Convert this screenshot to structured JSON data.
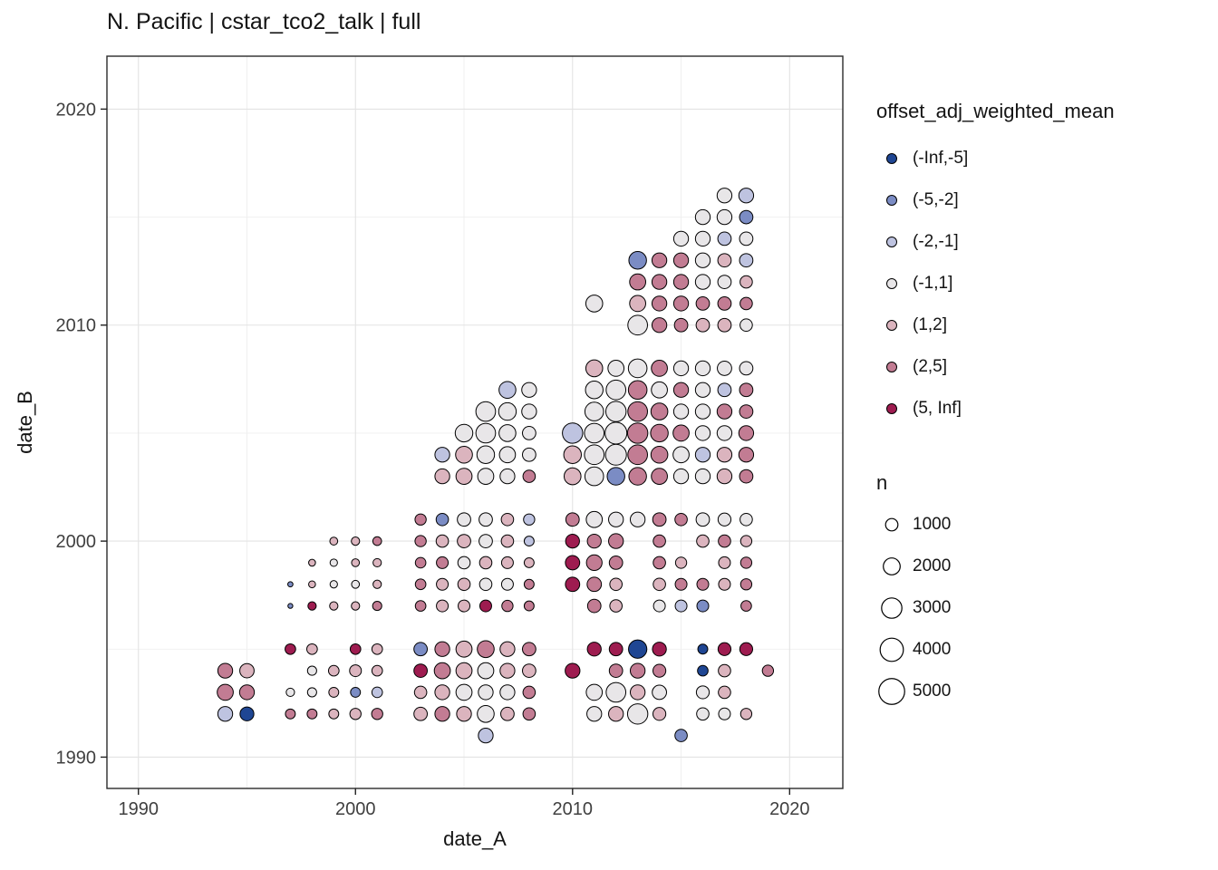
{
  "chart_data": {
    "type": "scatter",
    "title": "N. Pacific | cstar_tco2_talk | full",
    "xlabel": "date_A",
    "ylabel": "date_B",
    "xlim": [
      1988.55,
      2022.45
    ],
    "ylim": [
      1988.55,
      2022.45
    ],
    "x_ticks": [
      1990,
      2000,
      2010,
      2020
    ],
    "y_ticks": [
      1990,
      2000,
      2010,
      2020
    ],
    "x_minor_ticks": [
      1995,
      2005,
      2015
    ],
    "y_minor_ticks": [
      1995,
      2005,
      2015
    ],
    "grid": "major+minor",
    "legend_position": "right",
    "panel_border_color": "#2a2a2a",
    "major_grid_color": "#e3e3e3",
    "minor_grid_color": "#efefef",
    "point_stroke_color": "#000000",
    "color_legend": {
      "title": "offset_adj_weighted_mean",
      "bins": [
        {
          "label": "(-Inf,-5]",
          "color": "#1F4693"
        },
        {
          "label": "(-5,-2]",
          "color": "#7B8CC4"
        },
        {
          "label": "(-2,-1]",
          "color": "#BEC3E0"
        },
        {
          "label": "(-1,1]",
          "color": "#E8E6E8"
        },
        {
          "label": "(1,2]",
          "color": "#DBB4BE"
        },
        {
          "label": "(2,5]",
          "color": "#C27C93"
        },
        {
          "label": "(5, Inf]",
          "color": "#9E1C50"
        }
      ]
    },
    "size_legend": {
      "title": "n",
      "values": [
        1000,
        2000,
        3000,
        4000,
        5000
      ]
    },
    "points_format": [
      "date_A",
      "date_B",
      "n",
      "color_bin_index"
    ],
    "points": [
      [
        1994,
        1994,
        1500,
        5
      ],
      [
        1995,
        1994,
        1400,
        4
      ],
      [
        1994,
        1993,
        1800,
        5
      ],
      [
        1995,
        1993,
        1500,
        5
      ],
      [
        1994,
        1992,
        1500,
        2
      ],
      [
        1995,
        1992,
        1300,
        0
      ],
      [
        1997,
        1995,
        700,
        6
      ],
      [
        1998,
        1995,
        700,
        4
      ],
      [
        2000,
        1995,
        700,
        6
      ],
      [
        2001,
        1995,
        700,
        4
      ],
      [
        1998,
        1994,
        500,
        3
      ],
      [
        1999,
        1994,
        700,
        4
      ],
      [
        2000,
        1994,
        900,
        4
      ],
      [
        2001,
        1994,
        700,
        4
      ],
      [
        1997,
        1993,
        400,
        3
      ],
      [
        1998,
        1993,
        500,
        3
      ],
      [
        1999,
        1993,
        600,
        4
      ],
      [
        2000,
        1993,
        600,
        1
      ],
      [
        2001,
        1993,
        700,
        2
      ],
      [
        1997,
        1992,
        600,
        5
      ],
      [
        1998,
        1992,
        600,
        5
      ],
      [
        1999,
        1992,
        600,
        4
      ],
      [
        2000,
        1992,
        800,
        4
      ],
      [
        2001,
        1992,
        800,
        5
      ],
      [
        2003,
        1995,
        1200,
        1
      ],
      [
        2004,
        1995,
        1500,
        5
      ],
      [
        2005,
        1995,
        1800,
        4
      ],
      [
        2006,
        1995,
        2000,
        5
      ],
      [
        2007,
        1995,
        1500,
        4
      ],
      [
        2008,
        1995,
        1200,
        5
      ],
      [
        2003,
        1994,
        1200,
        6
      ],
      [
        2004,
        1994,
        1800,
        5
      ],
      [
        2005,
        1994,
        1800,
        4
      ],
      [
        2006,
        1994,
        1800,
        3
      ],
      [
        2007,
        1994,
        1500,
        4
      ],
      [
        2008,
        1994,
        1200,
        4
      ],
      [
        2003,
        1993,
        1000,
        4
      ],
      [
        2004,
        1993,
        1500,
        4
      ],
      [
        2005,
        1993,
        1800,
        3
      ],
      [
        2006,
        1993,
        1500,
        3
      ],
      [
        2007,
        1993,
        1500,
        3
      ],
      [
        2008,
        1993,
        1000,
        5
      ],
      [
        2003,
        1992,
        1200,
        4
      ],
      [
        2004,
        1992,
        1500,
        5
      ],
      [
        2005,
        1992,
        1500,
        4
      ],
      [
        2006,
        1992,
        2000,
        3
      ],
      [
        2007,
        1992,
        1200,
        4
      ],
      [
        2008,
        1992,
        1000,
        5
      ],
      [
        2006,
        1991,
        1500,
        2
      ],
      [
        2011,
        1995,
        1300,
        6
      ],
      [
        2012,
        1995,
        1200,
        6
      ],
      [
        2013,
        1995,
        2400,
        0
      ],
      [
        2014,
        1995,
        1300,
        6
      ],
      [
        2016,
        1995,
        600,
        0
      ],
      [
        2017,
        1995,
        1100,
        6
      ],
      [
        2018,
        1995,
        1100,
        6
      ],
      [
        2010,
        1994,
        1500,
        6
      ],
      [
        2012,
        1994,
        1200,
        5
      ],
      [
        2013,
        1994,
        1500,
        5
      ],
      [
        2014,
        1994,
        1100,
        5
      ],
      [
        2016,
        1994,
        700,
        0
      ],
      [
        2017,
        1994,
        1000,
        4
      ],
      [
        2019,
        1994,
        800,
        5
      ],
      [
        2011,
        1993,
        1800,
        3
      ],
      [
        2012,
        1993,
        2800,
        3
      ],
      [
        2013,
        1993,
        1500,
        4
      ],
      [
        2014,
        1993,
        1400,
        3
      ],
      [
        2016,
        1993,
        1100,
        3
      ],
      [
        2017,
        1993,
        1000,
        4
      ],
      [
        2011,
        1992,
        1500,
        3
      ],
      [
        2012,
        1992,
        1500,
        4
      ],
      [
        2013,
        1992,
        3000,
        3
      ],
      [
        2014,
        1992,
        1100,
        4
      ],
      [
        2016,
        1992,
        1000,
        3
      ],
      [
        2017,
        1992,
        900,
        3
      ],
      [
        2018,
        1992,
        800,
        4
      ],
      [
        2015,
        1991,
        1000,
        1
      ],
      [
        1999,
        2000,
        350,
        4
      ],
      [
        2000,
        2000,
        400,
        4
      ],
      [
        2001,
        2000,
        450,
        5
      ],
      [
        1998,
        1999,
        250,
        4
      ],
      [
        1999,
        1999,
        300,
        3
      ],
      [
        2000,
        1999,
        350,
        4
      ],
      [
        2001,
        1999,
        400,
        4
      ],
      [
        1997,
        1998,
        120,
        1
      ],
      [
        1998,
        1998,
        250,
        4
      ],
      [
        1999,
        1998,
        300,
        3
      ],
      [
        2000,
        1998,
        350,
        3
      ],
      [
        2001,
        1998,
        400,
        4
      ],
      [
        1997,
        1997,
        100,
        1
      ],
      [
        1998,
        1997,
        400,
        6
      ],
      [
        1999,
        1997,
        400,
        4
      ],
      [
        2000,
        1997,
        400,
        4
      ],
      [
        2001,
        1997,
        500,
        5
      ],
      [
        2003,
        2001,
        800,
        5
      ],
      [
        2004,
        2001,
        1000,
        1
      ],
      [
        2005,
        2001,
        1200,
        3
      ],
      [
        2006,
        2001,
        1200,
        3
      ],
      [
        2007,
        2001,
        1000,
        4
      ],
      [
        2008,
        2001,
        800,
        2
      ],
      [
        2003,
        2000,
        800,
        5
      ],
      [
        2004,
        2000,
        1000,
        4
      ],
      [
        2005,
        2000,
        1200,
        4
      ],
      [
        2006,
        2000,
        1200,
        3
      ],
      [
        2007,
        2000,
        1000,
        4
      ],
      [
        2008,
        2000,
        600,
        2
      ],
      [
        2003,
        1999,
        700,
        5
      ],
      [
        2004,
        1999,
        900,
        5
      ],
      [
        2005,
        1999,
        1000,
        3
      ],
      [
        2006,
        1999,
        1000,
        4
      ],
      [
        2007,
        1999,
        900,
        4
      ],
      [
        2008,
        1999,
        600,
        4
      ],
      [
        2003,
        1998,
        700,
        5
      ],
      [
        2004,
        1998,
        900,
        4
      ],
      [
        2005,
        1998,
        1000,
        4
      ],
      [
        2006,
        1998,
        1000,
        3
      ],
      [
        2007,
        1998,
        900,
        3
      ],
      [
        2008,
        1998,
        600,
        5
      ],
      [
        2003,
        1997,
        700,
        5
      ],
      [
        2004,
        1997,
        900,
        4
      ],
      [
        2005,
        1997,
        900,
        4
      ],
      [
        2006,
        1997,
        900,
        6
      ],
      [
        2007,
        1997,
        800,
        5
      ],
      [
        2008,
        1997,
        600,
        5
      ],
      [
        2010,
        2001,
        1200,
        5
      ],
      [
        2011,
        2001,
        1800,
        3
      ],
      [
        2012,
        2001,
        1500,
        3
      ],
      [
        2013,
        2001,
        1500,
        3
      ],
      [
        2014,
        2001,
        1200,
        5
      ],
      [
        2015,
        2001,
        1000,
        5
      ],
      [
        2016,
        2001,
        1200,
        3
      ],
      [
        2017,
        2001,
        1100,
        3
      ],
      [
        2018,
        2001,
        1000,
        3
      ],
      [
        2010,
        2000,
        1300,
        6
      ],
      [
        2011,
        2000,
        1300,
        5
      ],
      [
        2012,
        2000,
        1500,
        5
      ],
      [
        2014,
        2000,
        1000,
        5
      ],
      [
        2016,
        2000,
        1000,
        4
      ],
      [
        2017,
        2000,
        1000,
        5
      ],
      [
        2018,
        2000,
        800,
        4
      ],
      [
        2010,
        1999,
        1400,
        6
      ],
      [
        2011,
        1999,
        1700,
        5
      ],
      [
        2012,
        1999,
        1200,
        5
      ],
      [
        2014,
        1999,
        1000,
        5
      ],
      [
        2015,
        1999,
        800,
        4
      ],
      [
        2017,
        1999,
        900,
        4
      ],
      [
        2018,
        1999,
        800,
        5
      ],
      [
        2010,
        1998,
        1400,
        6
      ],
      [
        2011,
        1998,
        1400,
        5
      ],
      [
        2012,
        1998,
        1000,
        4
      ],
      [
        2014,
        1998,
        1000,
        4
      ],
      [
        2015,
        1998,
        900,
        5
      ],
      [
        2016,
        1998,
        900,
        5
      ],
      [
        2017,
        1998,
        900,
        4
      ],
      [
        2018,
        1998,
        800,
        5
      ],
      [
        2011,
        1997,
        1200,
        5
      ],
      [
        2012,
        1997,
        1000,
        4
      ],
      [
        2014,
        1997,
        900,
        3
      ],
      [
        2015,
        1997,
        900,
        2
      ],
      [
        2016,
        1997,
        900,
        1
      ],
      [
        2018,
        1997,
        700,
        5
      ],
      [
        2007,
        2007,
        2000,
        2
      ],
      [
        2008,
        2007,
        1500,
        3
      ],
      [
        2006,
        2006,
        2800,
        3
      ],
      [
        2007,
        2006,
        2200,
        3
      ],
      [
        2008,
        2006,
        1500,
        3
      ],
      [
        2005,
        2005,
        2200,
        3
      ],
      [
        2006,
        2005,
        2800,
        3
      ],
      [
        2007,
        2005,
        2000,
        3
      ],
      [
        2008,
        2005,
        1200,
        3
      ],
      [
        2004,
        2004,
        1500,
        2
      ],
      [
        2005,
        2004,
        2000,
        4
      ],
      [
        2006,
        2004,
        2200,
        3
      ],
      [
        2007,
        2004,
        1800,
        3
      ],
      [
        2008,
        2004,
        1200,
        3
      ],
      [
        2004,
        2003,
        1500,
        4
      ],
      [
        2005,
        2003,
        1800,
        4
      ],
      [
        2006,
        2003,
        1800,
        3
      ],
      [
        2007,
        2003,
        1500,
        3
      ],
      [
        2008,
        2003,
        1000,
        5
      ],
      [
        2011,
        2008,
        2000,
        4
      ],
      [
        2012,
        2008,
        1800,
        3
      ],
      [
        2013,
        2008,
        2500,
        3
      ],
      [
        2014,
        2008,
        1800,
        5
      ],
      [
        2015,
        2008,
        1500,
        3
      ],
      [
        2016,
        2008,
        1500,
        3
      ],
      [
        2017,
        2008,
        1400,
        3
      ],
      [
        2018,
        2008,
        1200,
        3
      ],
      [
        2011,
        2007,
        2200,
        3
      ],
      [
        2012,
        2007,
        2800,
        3
      ],
      [
        2013,
        2007,
        2500,
        5
      ],
      [
        2014,
        2007,
        1800,
        3
      ],
      [
        2015,
        2007,
        1500,
        5
      ],
      [
        2016,
        2007,
        1500,
        3
      ],
      [
        2017,
        2007,
        1200,
        2
      ],
      [
        2018,
        2007,
        1200,
        5
      ],
      [
        2011,
        2006,
        2500,
        3
      ],
      [
        2012,
        2006,
        3000,
        3
      ],
      [
        2013,
        2006,
        2800,
        5
      ],
      [
        2014,
        2006,
        2000,
        5
      ],
      [
        2015,
        2006,
        1500,
        3
      ],
      [
        2016,
        2006,
        1500,
        3
      ],
      [
        2017,
        2006,
        1500,
        5
      ],
      [
        2018,
        2006,
        1200,
        5
      ],
      [
        2010,
        2005,
        3000,
        2
      ],
      [
        2011,
        2005,
        2800,
        3
      ],
      [
        2012,
        2005,
        3500,
        3
      ],
      [
        2013,
        2005,
        3000,
        5
      ],
      [
        2014,
        2005,
        2200,
        5
      ],
      [
        2015,
        2005,
        1800,
        5
      ],
      [
        2016,
        2005,
        1500,
        3
      ],
      [
        2017,
        2005,
        1500,
        3
      ],
      [
        2018,
        2005,
        1500,
        5
      ],
      [
        2010,
        2004,
        2200,
        4
      ],
      [
        2011,
        2004,
        2800,
        3
      ],
      [
        2012,
        2004,
        3200,
        3
      ],
      [
        2013,
        2004,
        2800,
        5
      ],
      [
        2014,
        2004,
        2000,
        5
      ],
      [
        2015,
        2004,
        1800,
        3
      ],
      [
        2016,
        2004,
        1500,
        2
      ],
      [
        2017,
        2004,
        1500,
        4
      ],
      [
        2018,
        2004,
        1500,
        5
      ],
      [
        2010,
        2003,
        2000,
        4
      ],
      [
        2011,
        2003,
        2500,
        3
      ],
      [
        2012,
        2003,
        2200,
        1
      ],
      [
        2013,
        2003,
        2200,
        5
      ],
      [
        2014,
        2003,
        1800,
        5
      ],
      [
        2015,
        2003,
        1500,
        3
      ],
      [
        2016,
        2003,
        1500,
        3
      ],
      [
        2017,
        2003,
        1500,
        4
      ],
      [
        2018,
        2003,
        1200,
        5
      ],
      [
        2017,
        2016,
        1500,
        3
      ],
      [
        2018,
        2016,
        1500,
        2
      ],
      [
        2016,
        2015,
        1500,
        3
      ],
      [
        2017,
        2015,
        1500,
        3
      ],
      [
        2018,
        2015,
        1200,
        1
      ],
      [
        2015,
        2014,
        1500,
        3
      ],
      [
        2016,
        2014,
        1500,
        3
      ],
      [
        2017,
        2014,
        1200,
        2
      ],
      [
        2018,
        2014,
        1200,
        3
      ],
      [
        2013,
        2013,
        2200,
        1
      ],
      [
        2014,
        2013,
        1500,
        5
      ],
      [
        2015,
        2013,
        1500,
        5
      ],
      [
        2016,
        2013,
        1500,
        3
      ],
      [
        2017,
        2013,
        1200,
        4
      ],
      [
        2018,
        2013,
        1200,
        2
      ],
      [
        2013,
        2012,
        1800,
        5
      ],
      [
        2014,
        2012,
        1500,
        5
      ],
      [
        2015,
        2012,
        1500,
        5
      ],
      [
        2016,
        2012,
        1500,
        3
      ],
      [
        2017,
        2012,
        1200,
        3
      ],
      [
        2018,
        2012,
        1000,
        4
      ],
      [
        2011,
        2011,
        2000,
        3
      ],
      [
        2013,
        2011,
        1800,
        4
      ],
      [
        2014,
        2011,
        1500,
        5
      ],
      [
        2015,
        2011,
        1500,
        5
      ],
      [
        2016,
        2011,
        1200,
        5
      ],
      [
        2017,
        2011,
        1200,
        5
      ],
      [
        2018,
        2011,
        1000,
        5
      ],
      [
        2013,
        2010,
        2800,
        3
      ],
      [
        2014,
        2010,
        1500,
        5
      ],
      [
        2015,
        2010,
        1200,
        5
      ],
      [
        2016,
        2010,
        1200,
        4
      ],
      [
        2017,
        2010,
        1200,
        4
      ],
      [
        2018,
        2010,
        1000,
        3
      ]
    ]
  }
}
